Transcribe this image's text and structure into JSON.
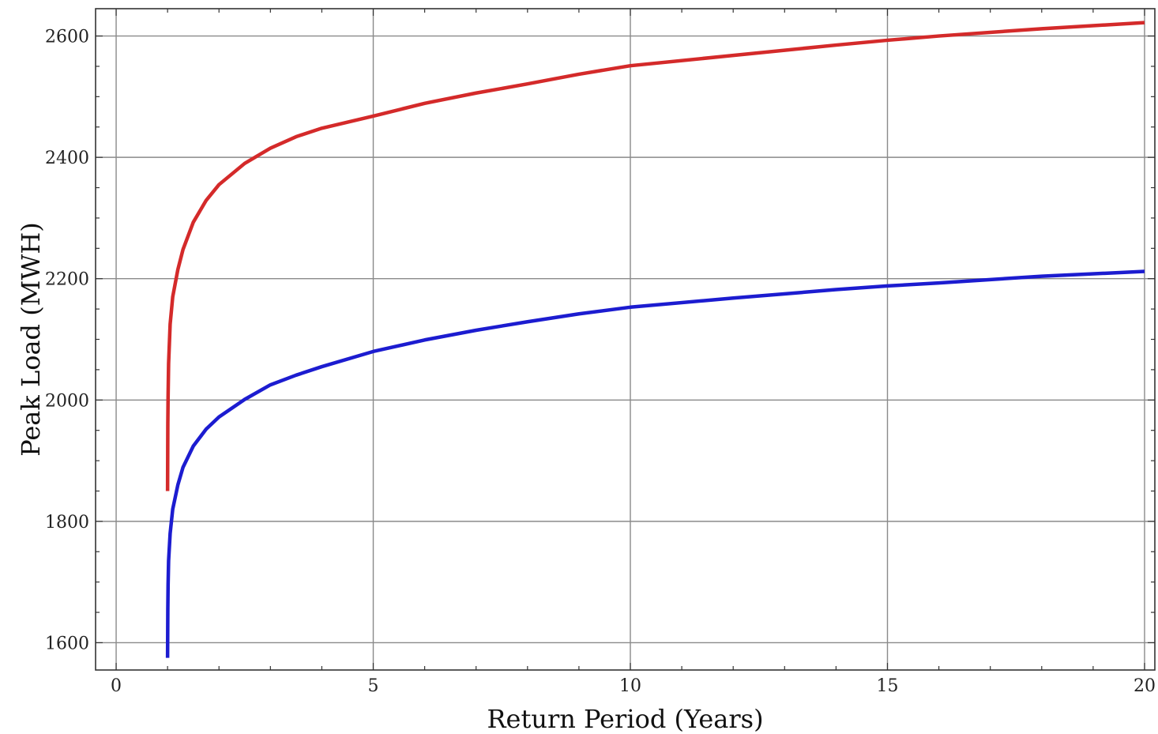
{
  "chart_data": {
    "type": "line",
    "title": "",
    "xlabel": "Return Period (Years)",
    "ylabel": "Peak Load (MWH)",
    "xlim": [
      -0.4,
      20.2
    ],
    "ylim": [
      1555,
      2645
    ],
    "x_ticks": [
      0,
      5,
      10,
      15,
      20
    ],
    "x_tick_labels": [
      "0",
      "5",
      "10",
      "15",
      "20"
    ],
    "y_ticks": [
      1600,
      1800,
      2000,
      2200,
      2400,
      2600
    ],
    "y_tick_labels": [
      "1600",
      "1800",
      "2000",
      "2200",
      "2400",
      "2600"
    ],
    "x_minor_step": 1,
    "y_minor_step": 50,
    "grid": true,
    "colors": {
      "series_upper": "#d42a2a",
      "series_lower": "#1c1cd0",
      "grid": "#8a8a8a",
      "frame": "#333333"
    },
    "series": [
      {
        "color": "#d42a2a",
        "x": [
          1.0,
          1.005,
          1.01,
          1.02,
          1.05,
          1.1,
          1.2,
          1.3,
          1.5,
          1.75,
          2.0,
          2.5,
          3.0,
          3.5,
          4.0,
          5.0,
          6.0,
          7.0,
          8.0,
          9.0,
          10.0,
          12.0,
          14.0,
          15.0,
          16.0,
          18.0,
          20.0
        ],
        "y": [
          1850,
          1960,
          2005,
          2060,
          2125,
          2170,
          2215,
          2248,
          2293,
          2329,
          2355,
          2390,
          2415,
          2434,
          2448,
          2468,
          2489,
          2506,
          2521,
          2537,
          2551,
          2568,
          2585,
          2593,
          2600,
          2612,
          2622
        ]
      },
      {
        "color": "#1c1cd0",
        "x": [
          1.0,
          1.005,
          1.01,
          1.02,
          1.05,
          1.1,
          1.2,
          1.3,
          1.5,
          1.75,
          2.0,
          2.5,
          3.0,
          3.5,
          4.0,
          5.0,
          6.0,
          7.0,
          8.0,
          9.0,
          10.0,
          12.0,
          14.0,
          15.0,
          16.0,
          18.0,
          20.0
        ],
        "y": [
          1575,
          1655,
          1695,
          1735,
          1780,
          1820,
          1860,
          1889,
          1924,
          1952,
          1972,
          2001,
          2025,
          2041,
          2055,
          2080,
          2099,
          2115,
          2129,
          2142,
          2153,
          2168,
          2182,
          2188,
          2193,
          2204,
          2212
        ]
      }
    ]
  }
}
